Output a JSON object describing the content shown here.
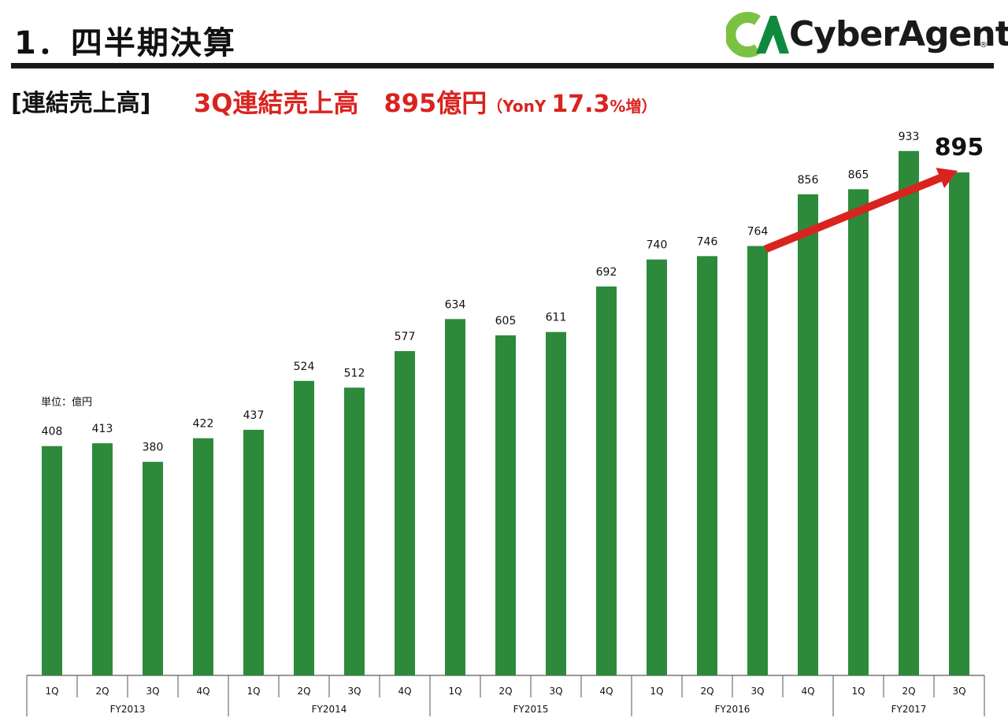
{
  "header": {
    "title": "1．四半期決算",
    "logo_text": "CyberAgent",
    "logo_mark": "CA",
    "logo_reg": "®"
  },
  "section": {
    "label": "[連結売上高]",
    "headline_main": "3Q連結売上高　895億円",
    "headline_paren_open": "（",
    "headline_yony": "YonY ",
    "headline_pct": "17.3",
    "headline_suffix": "%増）"
  },
  "colors": {
    "bar": "#2d8a3b",
    "accent": "#d9231f",
    "logo_green": "#7cc242",
    "logo_dark_green": "#0f8a3c"
  },
  "chart_data": {
    "type": "bar",
    "unit_label": "単位：億円",
    "categories": [
      "1Q",
      "2Q",
      "3Q",
      "4Q",
      "1Q",
      "2Q",
      "3Q",
      "4Q",
      "1Q",
      "2Q",
      "3Q",
      "4Q",
      "1Q",
      "2Q",
      "3Q",
      "4Q",
      "1Q",
      "2Q",
      "3Q"
    ],
    "groups": [
      {
        "name": "FY2013",
        "count": 4
      },
      {
        "name": "FY2014",
        "count": 4
      },
      {
        "name": "FY2015",
        "count": 4
      },
      {
        "name": "FY2016",
        "count": 4
      },
      {
        "name": "FY2017",
        "count": 3
      }
    ],
    "values": [
      408,
      413,
      380,
      422,
      437,
      524,
      512,
      577,
      634,
      605,
      611,
      692,
      740,
      746,
      764,
      856,
      865,
      933,
      895
    ],
    "highlight_index": 18,
    "arrow": {
      "from_index": 14,
      "to_index": 18
    },
    "ylim": [
      0,
      1000
    ],
    "grid": false,
    "legend": "none"
  }
}
